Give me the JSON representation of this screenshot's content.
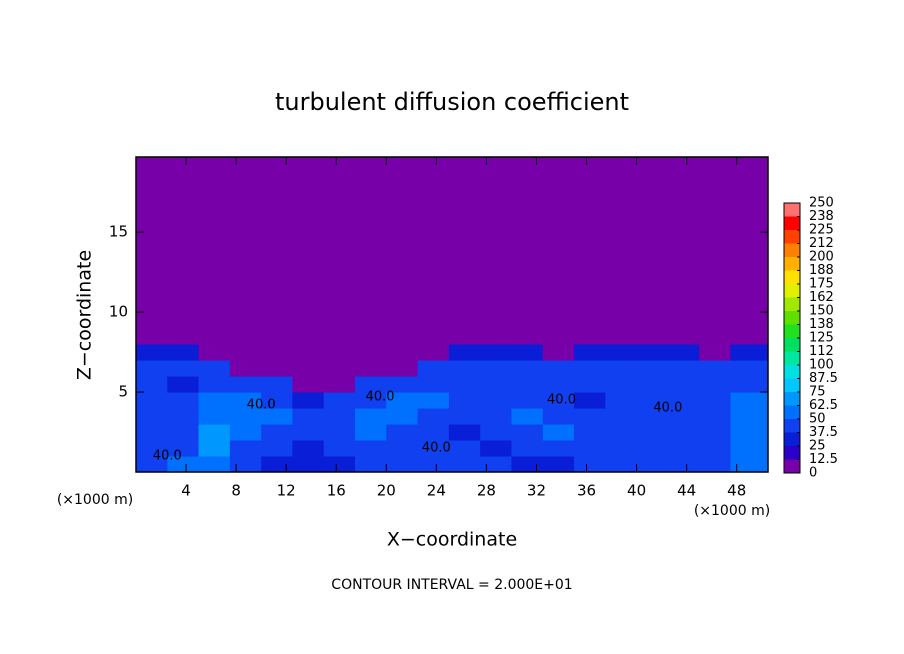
{
  "chart_data": {
    "type": "filled-contour",
    "title": "turbulent diffusion coefficient",
    "x_label": "X−coordinate",
    "y_label": "Z−coordinate",
    "x_units": [
      "(×1000 m)",
      "(×1000 m)"
    ],
    "footer": "CONTOUR INTERVAL = 2.000E+01",
    "xlim": [
      0,
      50.5
    ],
    "ylim": [
      0,
      19.7
    ],
    "xticks": [
      4,
      8,
      12,
      16,
      20,
      24,
      28,
      32,
      36,
      40,
      44,
      48
    ],
    "yticks": [
      5,
      10,
      15
    ],
    "field": {
      "x_edges": [
        0,
        2.5,
        5,
        7.5,
        10,
        12.5,
        15,
        17.5,
        20,
        22.5,
        25,
        27.5,
        30,
        32.5,
        35,
        37.5,
        40,
        42.5,
        45,
        47.5,
        50.5
      ],
      "y_edges": [
        0,
        1,
        2,
        3,
        4,
        5,
        6,
        7,
        8,
        19.7
      ],
      "values": [
        [
          45,
          50,
          60,
          40,
          35,
          30,
          35,
          40,
          40,
          40,
          40,
          40,
          30,
          35,
          40,
          40,
          45,
          40,
          40,
          55
        ],
        [
          40,
          45,
          70,
          45,
          40,
          35,
          40,
          45,
          40,
          40,
          40,
          35,
          40,
          45,
          40,
          40,
          45,
          40,
          40,
          60
        ],
        [
          40,
          40,
          65,
          55,
          45,
          40,
          45,
          50,
          45,
          40,
          35,
          40,
          45,
          50,
          40,
          45,
          40,
          40,
          45,
          55
        ],
        [
          40,
          40,
          55,
          50,
          50,
          40,
          40,
          50,
          50,
          45,
          40,
          40,
          50,
          45,
          40,
          40,
          45,
          40,
          40,
          55
        ],
        [
          40,
          40,
          50,
          55,
          45,
          35,
          40,
          45,
          50,
          50,
          45,
          40,
          45,
          40,
          35,
          40,
          40,
          45,
          40,
          50
        ],
        [
          40,
          35,
          45,
          40,
          45,
          0,
          0,
          40,
          45,
          45,
          45,
          40,
          40,
          40,
          40,
          40,
          40,
          40,
          40,
          45
        ],
        [
          40,
          40,
          40,
          0,
          0,
          0,
          0,
          0,
          0,
          40,
          40,
          40,
          40,
          40,
          40,
          40,
          40,
          40,
          40,
          40
        ],
        [
          35,
          35,
          0,
          0,
          0,
          0,
          0,
          0,
          0,
          0,
          35,
          35,
          35,
          0,
          35,
          35,
          35,
          35,
          0,
          35
        ],
        [
          0,
          0,
          0,
          0,
          0,
          0,
          0,
          0,
          0,
          0,
          0,
          0,
          0,
          0,
          0,
          0,
          0,
          0,
          0,
          0
        ]
      ]
    },
    "contour_labels": [
      {
        "value": 40,
        "label": "40.0"
      },
      {
        "value": 40,
        "label": "40.0"
      },
      {
        "value": 40,
        "label": "40.0"
      },
      {
        "value": 40,
        "label": "40.0"
      },
      {
        "value": 40,
        "label": "40.0"
      },
      {
        "value": 40,
        "label": "40.0"
      }
    ],
    "colorbar": {
      "ticks": [
        0,
        12.5,
        25,
        37.5,
        50,
        62.5,
        75,
        87.5,
        100,
        {
          "value": 112.5,
          "label": "112"
        },
        125,
        {
          "value": 137.5,
          "label": "138"
        },
        150,
        {
          "value": 162.5,
          "label": "162"
        },
        175,
        {
          "value": 187.5,
          "label": "188"
        },
        200,
        {
          "value": 212.5,
          "label": "212"
        },
        225,
        {
          "value": 237.5,
          "label": "238"
        },
        250
      ],
      "colors": [
        "#7800a8",
        "#2a00c8",
        "#0a1ed8",
        "#1040f0",
        "#0070ff",
        "#0098ff",
        "#00c8ff",
        "#00e0e0",
        "#00e8a0",
        "#00e060",
        "#20e020",
        "#60e000",
        "#a0e800",
        "#e0f000",
        "#ffe000",
        "#ffb000",
        "#ff8000",
        "#ff4000",
        "#ff0000",
        "#ff7070"
      ]
    }
  }
}
